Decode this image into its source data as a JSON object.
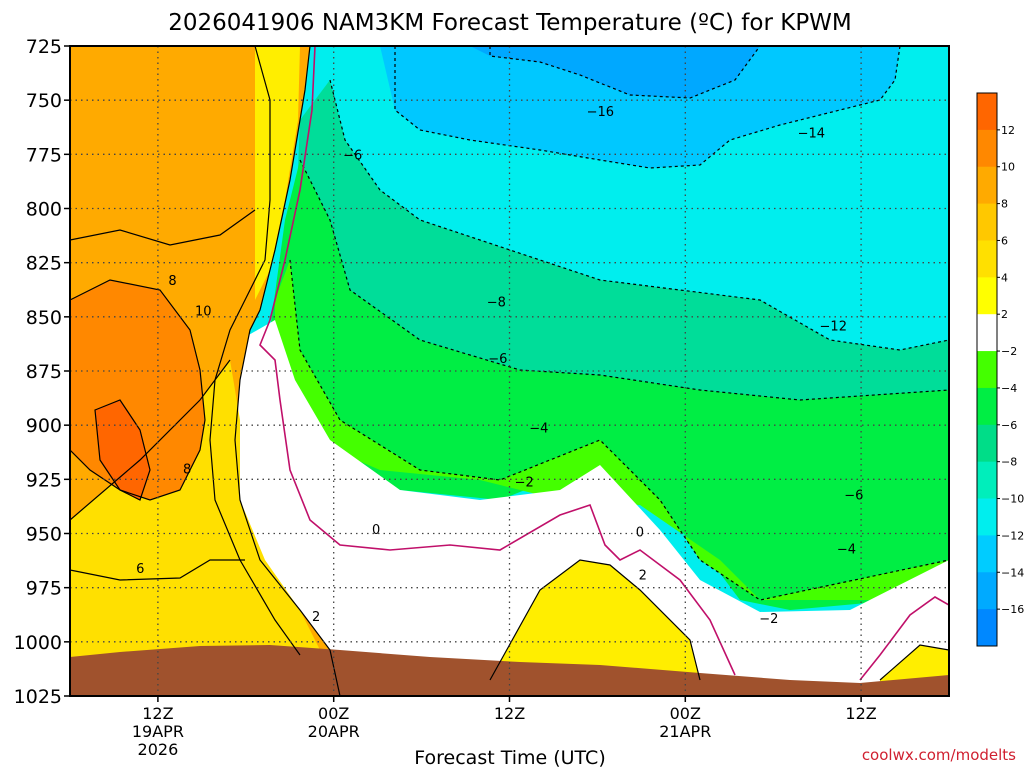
{
  "chart_data": {
    "type": "contour",
    "title": "2026041906 NAM3KM Forecast Temperature (ºC) for KPWM",
    "xlabel": "Forecast Time (UTC)",
    "ylabel": "",
    "credit": "coolwx.com/modelts",
    "y_axis": {
      "unit": "hPa",
      "range": [
        725,
        1025
      ],
      "ticks": [
        "725",
        "750",
        "775",
        "800",
        "825",
        "850",
        "875",
        "900",
        "925",
        "950",
        "975",
        "1000",
        "1025"
      ]
    },
    "x_axis": {
      "unit": "forecast hour",
      "range": [
        0,
        60
      ],
      "ticks": [
        {
          "hour": 6,
          "line1": "12Z",
          "line2": "19APR",
          "line3": "2026"
        },
        {
          "hour": 18,
          "line1": "00Z",
          "line2": "20APR",
          "line3": ""
        },
        {
          "hour": 30,
          "line1": "12Z",
          "line2": "",
          "line3": ""
        },
        {
          "hour": 42,
          "line1": "00Z",
          "line2": "21APR",
          "line3": ""
        },
        {
          "hour": 54,
          "line1": "12Z",
          "line2": "",
          "line3": ""
        }
      ]
    },
    "colorbar": {
      "levels": [
        12,
        10,
        8,
        6,
        4,
        2,
        -2,
        -4,
        -6,
        -8,
        -10,
        -12,
        -14,
        -16
      ],
      "labels": [
        "12",
        "10",
        "8",
        "6",
        "4",
        "2",
        "−2",
        "−4",
        "−6",
        "−8",
        "−10",
        "−12",
        "−14",
        "−16"
      ],
      "colors": [
        "#ff6600",
        "#ff8800",
        "#ffaa00",
        "#ffc800",
        "#ffe000",
        "#ffff00",
        "#ffffff",
        "#44ff00",
        "#00ee44",
        "#00dd88",
        "#00eebb",
        "#00eeee",
        "#00ccff",
        "#00aaff",
        "#0088ff"
      ]
    },
    "contour_labels": [
      {
        "text": "−16",
        "hour": 36.2,
        "hpa": 755
      },
      {
        "text": "−14",
        "hour": 50.6,
        "hpa": 765
      },
      {
        "text": "−6",
        "hour": 19.3,
        "hpa": 775
      },
      {
        "text": "8",
        "hour": 7.0,
        "hpa": 833
      },
      {
        "text": "−8",
        "hour": 29.1,
        "hpa": 843
      },
      {
        "text": "10",
        "hour": 9.1,
        "hpa": 847
      },
      {
        "text": "−12",
        "hour": 52.1,
        "hpa": 854
      },
      {
        "text": "−6",
        "hour": 29.2,
        "hpa": 869
      },
      {
        "text": "−4",
        "hour": 32.0,
        "hpa": 901
      },
      {
        "text": "8",
        "hour": 8.0,
        "hpa": 920
      },
      {
        "text": "−2",
        "hour": 31.0,
        "hpa": 926
      },
      {
        "text": "−6",
        "hour": 53.5,
        "hpa": 932
      },
      {
        "text": "0",
        "hour": 20.9,
        "hpa": 948
      },
      {
        "text": "0",
        "hour": 38.9,
        "hpa": 949
      },
      {
        "text": "−4",
        "hour": 53.0,
        "hpa": 957
      },
      {
        "text": "6",
        "hour": 4.8,
        "hpa": 966
      },
      {
        "text": "2",
        "hour": 39.1,
        "hpa": 969
      },
      {
        "text": "2",
        "hour": 16.8,
        "hpa": 988
      },
      {
        "text": "−2",
        "hour": 47.7,
        "hpa": 989
      }
    ]
  }
}
